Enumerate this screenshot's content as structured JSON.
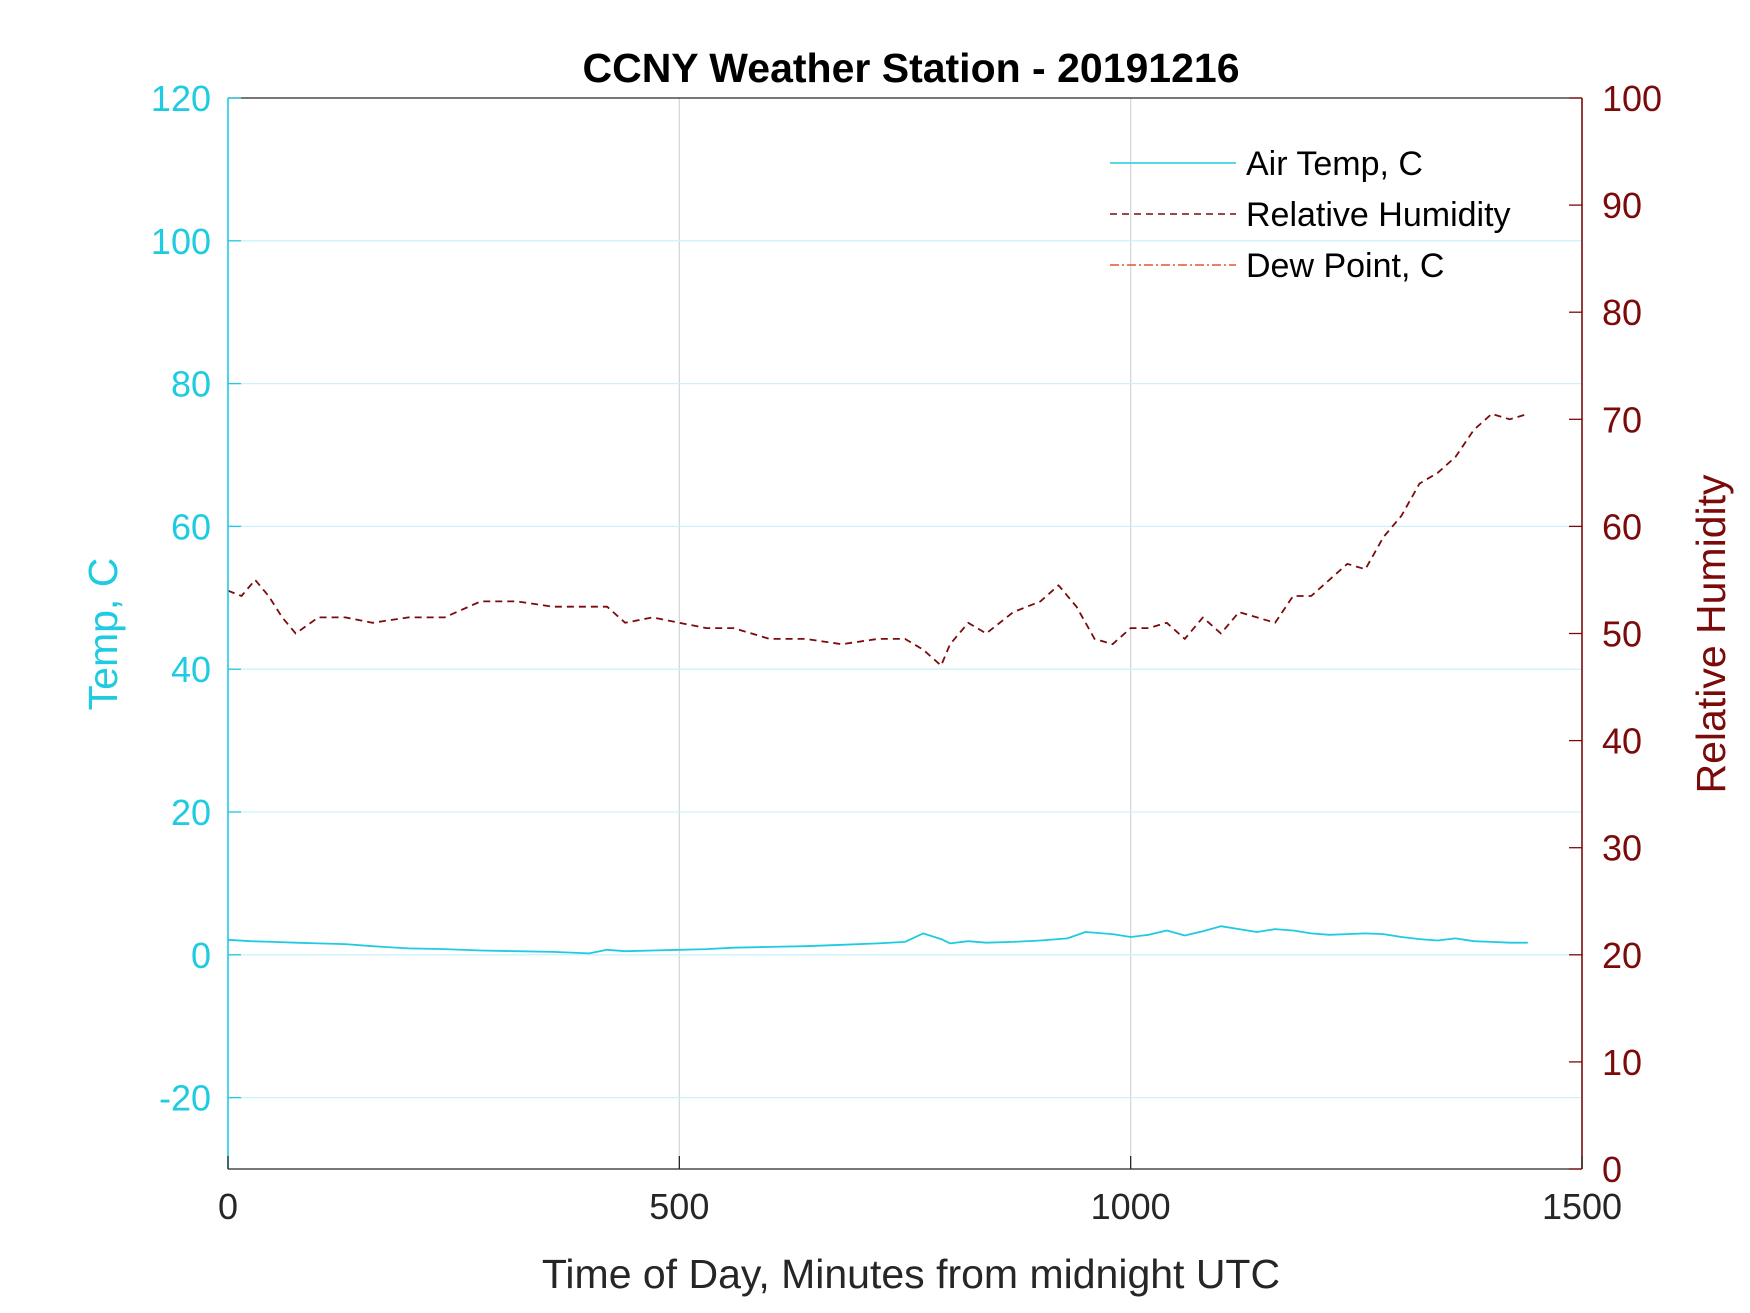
{
  "chart_data": {
    "type": "line",
    "title": "CCNY Weather Station - 20191216",
    "xlabel": "Time of Day, Minutes from midnight UTC",
    "ylabel_left": "Temp, C",
    "ylabel_right": "Relative Humidity",
    "xlim": [
      0,
      1500
    ],
    "ylim_left": [
      -30,
      120
    ],
    "ylim_right": [
      0,
      100
    ],
    "x_ticks": [
      0,
      500,
      1000,
      1500
    ],
    "y_left_ticks": [
      -20,
      0,
      20,
      40,
      60,
      80,
      100,
      120
    ],
    "y_right_ticks": [
      0,
      10,
      20,
      30,
      40,
      50,
      60,
      70,
      80,
      90,
      100
    ],
    "grid": true,
    "legend_position": "top-right",
    "colors": {
      "left_axis": "#1ecbe1",
      "right_axis": "#7b0b0b",
      "grid_vertical": "#d4d8e0",
      "grid_horizontal": "#cdf3f8",
      "dew_point": "#e8542f"
    },
    "series": [
      {
        "name": "Air Temp, C",
        "axis": "left",
        "color": "#1ecbe1",
        "style": "solid",
        "x": [
          0,
          25,
          50,
          75,
          100,
          130,
          160,
          200,
          240,
          280,
          320,
          360,
          400,
          420,
          440,
          470,
          500,
          530,
          560,
          600,
          640,
          680,
          720,
          750,
          770,
          790,
          800,
          820,
          840,
          870,
          900,
          930,
          950,
          980,
          1000,
          1020,
          1040,
          1060,
          1080,
          1100,
          1120,
          1140,
          1160,
          1180,
          1200,
          1220,
          1240,
          1260,
          1280,
          1300,
          1320,
          1340,
          1360,
          1380,
          1400,
          1420,
          1440
        ],
        "y": [
          2.1,
          1.9,
          1.8,
          1.7,
          1.6,
          1.5,
          1.2,
          0.9,
          0.8,
          0.6,
          0.5,
          0.4,
          0.2,
          0.7,
          0.5,
          0.6,
          0.7,
          0.8,
          1.0,
          1.1,
          1.2,
          1.4,
          1.6,
          1.8,
          3.0,
          2.2,
          1.6,
          1.9,
          1.7,
          1.8,
          2.0,
          2.3,
          3.2,
          2.9,
          2.5,
          2.8,
          3.4,
          2.7,
          3.3,
          4.0,
          3.6,
          3.2,
          3.6,
          3.4,
          3.0,
          2.8,
          2.9,
          3.0,
          2.9,
          2.5,
          2.2,
          2.0,
          2.3,
          1.9,
          1.8,
          1.7,
          1.7
        ]
      },
      {
        "name": "Relative Humidity",
        "axis": "right",
        "color": "#7b0b0b",
        "style": "dashed",
        "x": [
          0,
          15,
          30,
          45,
          60,
          75,
          100,
          130,
          160,
          200,
          240,
          280,
          320,
          360,
          400,
          420,
          440,
          470,
          500,
          530,
          560,
          600,
          640,
          680,
          720,
          750,
          770,
          790,
          800,
          820,
          840,
          870,
          900,
          920,
          940,
          960,
          980,
          1000,
          1020,
          1040,
          1060,
          1080,
          1100,
          1120,
          1140,
          1160,
          1180,
          1200,
          1220,
          1240,
          1260,
          1280,
          1300,
          1320,
          1340,
          1360,
          1380,
          1400,
          1420,
          1440
        ],
        "y": [
          54.0,
          53.5,
          55.0,
          53.5,
          51.5,
          50.0,
          51.5,
          51.5,
          51.0,
          51.5,
          51.5,
          53.0,
          53.0,
          52.5,
          52.5,
          52.5,
          51.0,
          51.5,
          51.0,
          50.5,
          50.5,
          49.5,
          49.5,
          49.0,
          49.5,
          49.5,
          48.5,
          47.0,
          49.0,
          51.0,
          50.0,
          52.0,
          53.0,
          54.5,
          52.5,
          49.5,
          49.0,
          50.5,
          50.5,
          51.0,
          49.5,
          51.5,
          50.0,
          52.0,
          51.5,
          51.0,
          53.5,
          53.5,
          55.0,
          56.5,
          56.0,
          59.0,
          61.0,
          64.0,
          65.0,
          66.5,
          69.0,
          70.5,
          70.0,
          70.5
        ]
      },
      {
        "name": "Dew Point, C",
        "axis": "left",
        "color": "#e8542f",
        "style": "dash-dot",
        "x": [],
        "y": []
      }
    ]
  }
}
